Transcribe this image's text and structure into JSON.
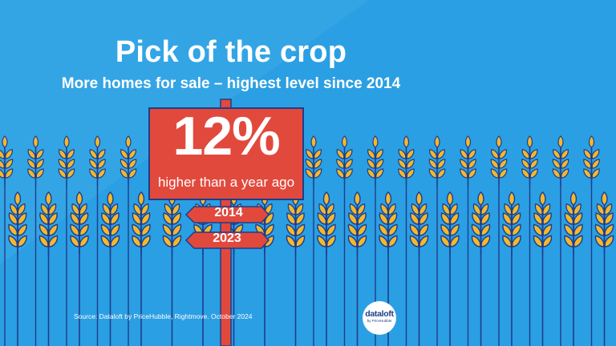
{
  "title": "Pick of the crop",
  "subtitle": "More homes for sale – highest level since 2014",
  "stat": {
    "value": "12%",
    "caption": "higher than a year ago"
  },
  "signs": [
    "2014",
    "2023"
  ],
  "source": "Source: Dataloft by PriceHubble, Rightmove. October 2024",
  "logo": {
    "name": "dataloft",
    "tagline": "by PriceHubble"
  },
  "colors": {
    "background": "#2b9fe3",
    "background_light": "#4fb3ec",
    "stem": "#1f3d8a",
    "grain": "#f2b82e",
    "grain_shade": "#d8932a",
    "sign": "#e2493d",
    "sign_dark": "#b8322b"
  }
}
